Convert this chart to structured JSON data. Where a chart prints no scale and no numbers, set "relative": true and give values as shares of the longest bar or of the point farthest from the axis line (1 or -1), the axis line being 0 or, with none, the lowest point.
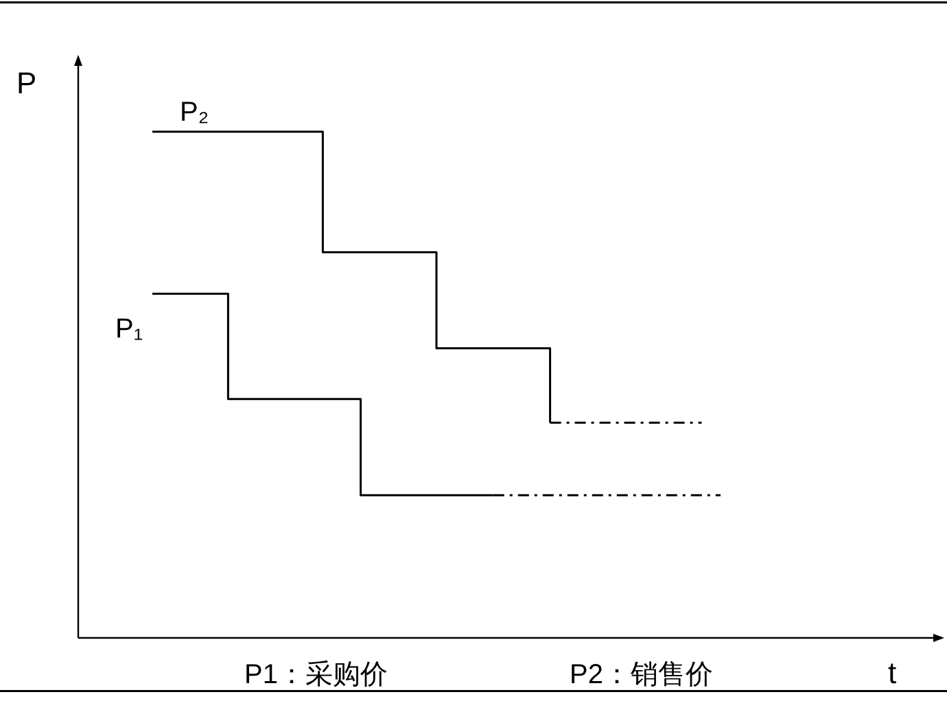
{
  "chart_data": {
    "type": "step",
    "relative": true,
    "ylabel": "P",
    "categories": [
      null,
      null,
      null,
      null,
      null,
      null,
      null,
      null,
      null,
      null,
      null,
      null,
      null,
      null,
      null,
      null,
      null,
      null,
      null,
      null,
      null,
      null,
      null,
      null,
      null,
      null,
      null,
      null,
      null,
      null,
      null
    ],
    "series": [
      {
        "name": "P₂",
        "color": "#000000",
        "values": [
          1,
          1,
          1,
          1,
          1,
          1,
          1,
          1,
          1,
          0.762,
          0.762,
          0.762,
          0.762,
          0.762,
          0.762,
          0.572,
          0.572,
          0.572,
          0.572,
          0.572,
          0.572,
          0.425,
          null,
          null,
          null,
          null,
          null,
          null,
          null,
          null,
          null
        ],
        "line_style": "solid"
      },
      {
        "name": "P₁",
        "color": "#000000",
        "values": [
          0.68,
          0.68,
          0.68,
          0.68,
          0.472,
          0.472,
          0.472,
          0.472,
          0.472,
          0.472,
          0.472,
          0.282,
          0.282,
          0.282,
          0.282,
          0.282,
          0.282,
          0.282,
          0.282,
          null,
          null,
          null,
          null,
          null,
          null,
          null,
          null,
          null,
          null,
          null,
          null
        ],
        "line_style": "solid"
      },
      {
        "type": "line",
        "color": "#000000",
        "values": [
          null,
          null,
          null,
          null,
          null,
          null,
          null,
          null,
          null,
          null,
          null,
          null,
          null,
          null,
          null,
          null,
          null,
          null,
          null,
          null,
          null,
          0.425,
          0.425,
          0.425,
          0.425,
          0.425,
          0.425,
          0.425,
          0.425,
          0.425,
          null
        ],
        "line_style": "dashed"
      },
      {
        "type": "line",
        "color": "#000000",
        "values": [
          null,
          null,
          null,
          null,
          null,
          null,
          null,
          null,
          null,
          null,
          null,
          null,
          null,
          null,
          null,
          null,
          null,
          null,
          0.282,
          0.282,
          0.282,
          0.282,
          0.282,
          0.282,
          0.282,
          0.282,
          0.282,
          0.282,
          0.282,
          0.282,
          0.282
        ],
        "line_style": "dashed"
      }
    ],
    "annotations": [
      "P1：采购价",
      "P2：销售价",
      "t"
    ]
  }
}
